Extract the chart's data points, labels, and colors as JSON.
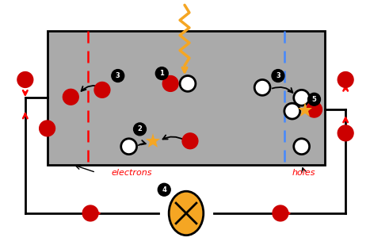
{
  "fig_width": 4.67,
  "fig_height": 3.09,
  "bg_color": "#ffffff",
  "cell_color": "#aaaaaa",
  "electron_color": "#cc0000",
  "hole_fill": "#ffffff",
  "hole_edge": "#000000",
  "orange": "#f5a623",
  "red": "#cc0000",
  "black": "#000000",
  "blue_dash": "#4488ff",
  "label_electrons": "electrons",
  "label_holes": "holes"
}
